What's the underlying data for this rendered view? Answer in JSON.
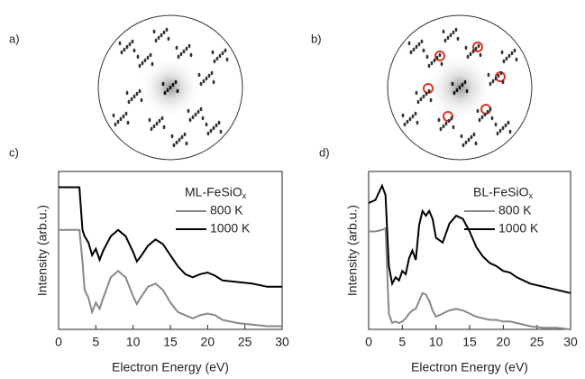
{
  "panels": [
    {
      "label": "a)"
    },
    {
      "label": "b)"
    }
  ],
  "chart_data": [
    {
      "type": "line",
      "panel_label": "c)",
      "xlabel": "Electron Energy (eV)",
      "ylabel": "Intensity (arb.u.)",
      "legend_title": "ML-FeSiO",
      "legend_title_subscript": "x",
      "legend": "upper right",
      "xlim": [
        0,
        30
      ],
      "xticks": [
        0,
        5,
        10,
        15,
        20,
        25,
        30
      ],
      "ylim": [
        0,
        1
      ],
      "x": [
        0,
        2.8,
        3.2,
        3.5,
        4,
        4.5,
        5,
        5.5,
        6,
        7,
        8,
        9,
        10,
        10.5,
        11,
        12,
        13,
        14,
        15,
        16,
        17,
        18,
        19,
        20,
        21,
        22,
        24,
        26,
        28,
        30
      ],
      "series": [
        {
          "name": "800 K",
          "color": "#888888",
          "values": [
            0.63,
            0.63,
            0.43,
            0.25,
            0.2,
            0.11,
            0.17,
            0.13,
            0.2,
            0.33,
            0.37,
            0.33,
            0.21,
            0.16,
            0.2,
            0.27,
            0.29,
            0.25,
            0.17,
            0.11,
            0.09,
            0.07,
            0.09,
            0.1,
            0.09,
            0.06,
            0.04,
            0.03,
            0.02,
            0.02
          ]
        },
        {
          "name": "1000 K",
          "color": "#000000",
          "values": [
            0.9,
            0.9,
            0.63,
            0.59,
            0.55,
            0.47,
            0.51,
            0.44,
            0.5,
            0.59,
            0.63,
            0.59,
            0.49,
            0.43,
            0.46,
            0.53,
            0.57,
            0.54,
            0.47,
            0.4,
            0.35,
            0.33,
            0.35,
            0.36,
            0.34,
            0.31,
            0.3,
            0.29,
            0.27,
            0.27
          ]
        }
      ]
    },
    {
      "type": "line",
      "panel_label": "d)",
      "xlabel": "Electron Energy (eV)",
      "ylabel": "Intensity (arb.u.)",
      "legend_title": "BL-FeSiO",
      "legend_title_subscript": "x",
      "legend": "upper right",
      "xlim": [
        0,
        30
      ],
      "xticks": [
        0,
        5,
        10,
        15,
        20,
        25,
        30
      ],
      "ylim": [
        0,
        1
      ],
      "x": [
        0,
        1,
        2,
        2.5,
        3,
        3.5,
        4,
        4.5,
        5,
        5.5,
        6,
        6.5,
        7,
        7.5,
        8,
        8.5,
        9,
        9.5,
        10,
        11,
        12,
        13,
        14,
        15,
        16,
        17,
        18,
        19,
        20,
        21,
        22,
        24,
        26,
        28,
        30
      ],
      "series": [
        {
          "name": "800 K",
          "color": "#888888",
          "values": [
            0.62,
            0.62,
            0.63,
            0.64,
            0.1,
            0.04,
            0.05,
            0.04,
            0.05,
            0.07,
            0.1,
            0.12,
            0.13,
            0.18,
            0.23,
            0.22,
            0.18,
            0.12,
            0.08,
            0.1,
            0.12,
            0.13,
            0.12,
            0.1,
            0.08,
            0.07,
            0.06,
            0.06,
            0.05,
            0.05,
            0.04,
            0.02,
            0.01,
            0.01,
            0.0
          ]
        },
        {
          "name": "1000 K",
          "color": "#000000",
          "values": [
            0.8,
            0.82,
            0.91,
            0.85,
            0.4,
            0.29,
            0.33,
            0.31,
            0.37,
            0.35,
            0.45,
            0.5,
            0.44,
            0.66,
            0.75,
            0.72,
            0.75,
            0.7,
            0.58,
            0.55,
            0.67,
            0.72,
            0.7,
            0.62,
            0.52,
            0.46,
            0.42,
            0.4,
            0.37,
            0.36,
            0.33,
            0.29,
            0.27,
            0.25,
            0.23
          ]
        }
      ]
    }
  ]
}
